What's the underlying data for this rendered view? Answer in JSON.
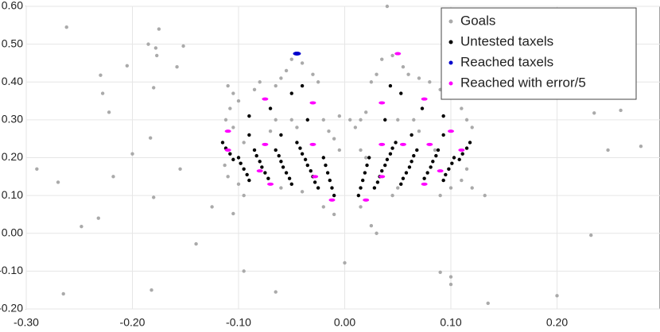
{
  "chart_data": {
    "type": "scatter",
    "xlim": [
      -0.3,
      0.297
    ],
    "ylim": [
      -0.2,
      0.6
    ],
    "xticks": [
      {
        "value": -0.3,
        "label": "-0.30"
      },
      {
        "value": -0.2,
        "label": "-0.20"
      },
      {
        "value": -0.1,
        "label": "-0.10"
      },
      {
        "value": 0,
        "label": "0.00"
      },
      {
        "value": 0.1,
        "label": "0.10"
      },
      {
        "value": 0.2,
        "label": "0.20"
      }
    ],
    "yticks": [
      {
        "value": -0.2,
        "label": "-0.20"
      },
      {
        "value": -0.1,
        "label": "-0.10"
      },
      {
        "value": 0,
        "label": "0.00"
      },
      {
        "value": 0.1,
        "label": "0.10"
      },
      {
        "value": 0.2,
        "label": "0.20"
      },
      {
        "value": 0.3,
        "label": "0.30"
      },
      {
        "value": 0.4,
        "label": "0.40"
      },
      {
        "value": 0.5,
        "label": "0.50"
      },
      {
        "value": 0.6,
        "label": "0.60"
      }
    ],
    "grid": true,
    "legend": "upper right",
    "series": [
      {
        "name": "Goals",
        "color": "#aaaaaa",
        "x": [
          -0.29,
          -0.27,
          -0.262,
          -0.248,
          -0.232,
          -0.23,
          -0.228,
          -0.222,
          -0.218,
          -0.205,
          -0.2,
          -0.185,
          -0.183,
          -0.178,
          -0.175,
          -0.18,
          -0.18,
          -0.177,
          -0.182,
          -0.158,
          -0.155,
          -0.152,
          -0.14,
          -0.125,
          -0.105,
          -0.095,
          -0.065,
          0.0,
          0.04,
          0.09,
          0.1,
          0.1,
          0.13,
          0.135,
          0.125,
          0.132,
          0.2,
          0.232,
          0.235,
          0.248,
          0.26,
          0.279,
          -0.265,
          -0.11,
          -0.105,
          -0.1,
          -0.108,
          -0.112,
          -0.105,
          -0.113,
          -0.11,
          -0.1,
          -0.095,
          -0.085,
          -0.08,
          -0.065,
          -0.06,
          -0.055,
          -0.05,
          -0.04,
          -0.03,
          -0.025,
          -0.065,
          -0.05,
          -0.045,
          -0.02,
          -0.015,
          -0.01,
          -0.005,
          -0.07,
          -0.095,
          -0.04,
          -0.06,
          -0.02,
          -0.01,
          -0.005,
          0.005,
          0.01,
          0.015,
          0.02,
          0.025,
          0.03,
          0.035,
          0.045,
          0.055,
          0.06,
          0.07,
          0.08,
          0.09,
          0.095,
          0.1,
          0.11,
          0.115,
          0.12,
          0.015,
          0.02,
          0.05,
          0.065,
          0.07,
          0.115,
          0.11,
          0.1,
          0.09,
          0.12,
          0.015,
          0.025,
          0.03,
          0.045,
          0.05,
          0.085
        ],
        "values": [
          0.17,
          0.135,
          0.545,
          0.018,
          0.04,
          0.418,
          0.37,
          0.32,
          0.15,
          0.443,
          0.21,
          0.5,
          0.252,
          0.49,
          0.54,
          0.385,
          0.095,
          0.47,
          -0.15,
          0.44,
          0.17,
          0.495,
          -0.028,
          0.07,
          0.052,
          -0.1,
          -0.155,
          -0.078,
          0.6,
          -0.103,
          -0.135,
          -0.115,
          0.43,
          -0.185,
          0.38,
          0.1,
          -0.165,
          -0.005,
          0.318,
          0.22,
          0.325,
          0.23,
          -0.16,
          0.39,
          0.37,
          0.35,
          0.33,
          0.3,
          0.28,
          0.18,
          0.15,
          0.13,
          0.1,
          0.38,
          0.4,
          0.39,
          0.41,
          0.43,
          0.46,
          0.45,
          0.42,
          0.4,
          0.3,
          0.3,
          0.28,
          0.3,
          0.27,
          0.25,
          0.22,
          0.27,
          0.24,
          0.11,
          0.12,
          0.07,
          0.05,
          0.31,
          0.3,
          0.28,
          0.3,
          0.32,
          0.4,
          0.42,
          0.46,
          0.47,
          0.44,
          0.42,
          0.41,
          0.4,
          0.38,
          0.39,
          0.36,
          0.33,
          0.3,
          0.28,
          0.22,
          0.2,
          0.3,
          0.3,
          0.27,
          0.17,
          0.14,
          0.12,
          0.1,
          0.12,
          0.07,
          0.02,
          0.0,
          0.1,
          0.12,
          0.22
        ]
      },
      {
        "name": "Untested taxels",
        "color": "#000000",
        "x": [
          -0.115,
          -0.112,
          -0.108,
          -0.105,
          -0.1,
          -0.098,
          -0.095,
          -0.092,
          -0.09,
          -0.085,
          -0.083,
          -0.08,
          -0.078,
          -0.075,
          -0.072,
          -0.065,
          -0.062,
          -0.06,
          -0.058,
          -0.055,
          -0.052,
          -0.05,
          -0.045,
          -0.042,
          -0.04,
          -0.037,
          -0.035,
          -0.032,
          -0.03,
          -0.028,
          -0.025,
          -0.02,
          -0.018,
          -0.016,
          -0.014,
          -0.012,
          -0.01,
          -0.09,
          -0.07,
          -0.05,
          -0.035,
          -0.09,
          -0.06,
          -0.04,
          0.118,
          0.115,
          0.111,
          0.108,
          0.103,
          0.101,
          0.098,
          0.095,
          0.093,
          0.088,
          0.086,
          0.083,
          0.081,
          0.078,
          0.075,
          0.068,
          0.065,
          0.063,
          0.061,
          0.058,
          0.055,
          0.053,
          0.048,
          0.045,
          0.043,
          0.04,
          0.038,
          0.035,
          0.033,
          0.031,
          0.028,
          0.023,
          0.021,
          0.019,
          0.017,
          0.015,
          0.013,
          0.093,
          0.073,
          0.053,
          0.038,
          0.093,
          0.063,
          0.043
        ],
        "values": [
          0.24,
          0.225,
          0.21,
          0.195,
          0.2,
          0.185,
          0.17,
          0.155,
          0.14,
          0.22,
          0.205,
          0.19,
          0.175,
          0.16,
          0.145,
          0.22,
          0.205,
          0.19,
          0.175,
          0.16,
          0.145,
          0.13,
          0.24,
          0.225,
          0.21,
          0.195,
          0.18,
          0.165,
          0.15,
          0.135,
          0.12,
          0.2,
          0.18,
          0.16,
          0.14,
          0.12,
          0.1,
          0.31,
          0.33,
          0.37,
          0.3,
          0.26,
          0.26,
          0.39,
          0.24,
          0.225,
          0.21,
          0.195,
          0.2,
          0.185,
          0.17,
          0.155,
          0.14,
          0.22,
          0.205,
          0.19,
          0.175,
          0.16,
          0.145,
          0.22,
          0.205,
          0.19,
          0.175,
          0.16,
          0.145,
          0.13,
          0.24,
          0.225,
          0.21,
          0.195,
          0.18,
          0.165,
          0.15,
          0.135,
          0.12,
          0.2,
          0.18,
          0.16,
          0.14,
          0.12,
          0.1,
          0.31,
          0.33,
          0.37,
          0.3,
          0.26,
          0.26,
          0.39
        ]
      },
      {
        "name": "Reached taxels",
        "color": "#0000cc",
        "x": [
          -0.045
        ],
        "values": [
          0.475
        ]
      },
      {
        "name": "Reached with error/5",
        "color": "#ff00ff",
        "x": [
          -0.075,
          -0.03,
          -0.11,
          -0.11,
          -0.075,
          -0.03,
          -0.08,
          -0.07,
          -0.028,
          -0.012,
          0.02,
          0.035,
          0.05,
          0.1,
          0.11,
          0.08,
          0.035,
          0.055,
          0.09,
          0.075,
          0.035,
          0.075
        ],
        "values": [
          0.355,
          0.345,
          0.27,
          0.22,
          0.235,
          0.235,
          0.165,
          0.13,
          0.15,
          0.088,
          0.088,
          0.345,
          0.475,
          0.27,
          0.22,
          0.235,
          0.235,
          0.235,
          0.165,
          0.13,
          0.15,
          0.355
        ]
      }
    ]
  }
}
